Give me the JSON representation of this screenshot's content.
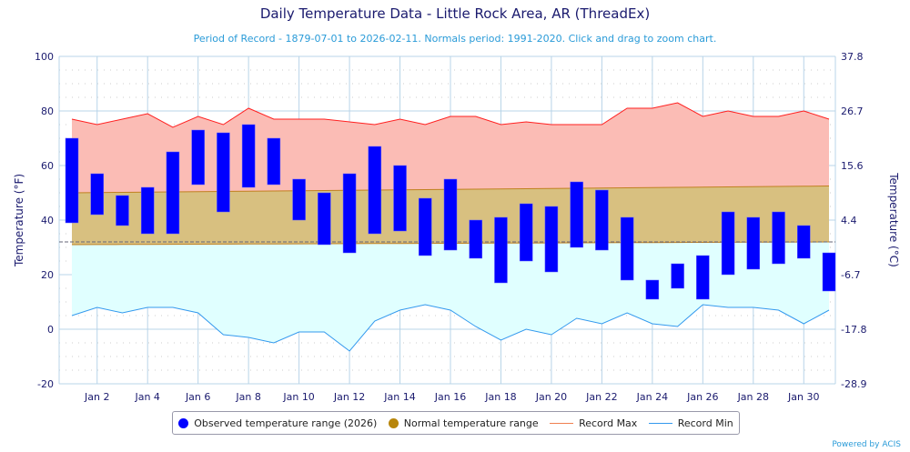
{
  "chart_data": {
    "type": "bar",
    "title": "Daily Temperature Data - Little Rock Area, AR (ThreadEx)",
    "subtitle": "Period of Record - 1879-07-01 to 2026-02-11. Normals period: 1991-2020. Click and drag to zoom chart.",
    "ylabel": "Temperature (°F)",
    "ylabel_right": "Temperature (°C)",
    "ylim": [
      -20,
      100
    ],
    "yticks": [
      -20,
      0,
      20,
      40,
      60,
      80,
      100
    ],
    "yticks_right": [
      "-28.9",
      "-17.8",
      "-6.7",
      "4.4",
      "15.6",
      "26.7",
      "37.8"
    ],
    "xtick_labels": [
      "Jan 2",
      "Jan 4",
      "Jan 6",
      "Jan 8",
      "Jan 10",
      "Jan 12",
      "Jan 14",
      "Jan 16",
      "Jan 18",
      "Jan 20",
      "Jan 22",
      "Jan 24",
      "Jan 26",
      "Jan 28",
      "Jan 30"
    ],
    "days": [
      1,
      2,
      3,
      4,
      5,
      6,
      7,
      8,
      9,
      10,
      11,
      12,
      13,
      14,
      15,
      16,
      17,
      18,
      19,
      20,
      21,
      22,
      23,
      24,
      25,
      26,
      27,
      28,
      29,
      30,
      31
    ],
    "series": [
      {
        "name": "Observed temperature range (2026)",
        "color": "#0000ff",
        "high": [
          70,
          57,
          49,
          52,
          65,
          73,
          72,
          75,
          70,
          55,
          50,
          57,
          67,
          60,
          48,
          55,
          40,
          41,
          46,
          45,
          54,
          51,
          41,
          18,
          24,
          27,
          43,
          41,
          43,
          38,
          28
        ],
        "low": [
          39,
          42,
          38,
          35,
          35,
          53,
          43,
          52,
          53,
          40,
          31,
          28,
          35,
          36,
          27,
          29,
          26,
          17,
          25,
          21,
          30,
          29,
          18,
          11,
          15,
          11,
          20,
          22,
          24,
          26,
          14
        ]
      },
      {
        "name": "Normal temperature range",
        "color": "#b8860b",
        "high_start": 50,
        "high_end": 52.5,
        "low_start": 31,
        "low_end": 32
      },
      {
        "name": "Record Max",
        "color": "#ff2020",
        "values": [
          77,
          75,
          77,
          79,
          74,
          78,
          75,
          81,
          77,
          77,
          77,
          76,
          75,
          77,
          75,
          78,
          78,
          75,
          76,
          75,
          75,
          75,
          81,
          81,
          83,
          78,
          80,
          78,
          78,
          80,
          77
        ]
      },
      {
        "name": "Record Min",
        "color": "#3399ee",
        "values": [
          5,
          8,
          6,
          8,
          8,
          6,
          -2,
          -3,
          -5,
          -1,
          -1,
          -8,
          3,
          7,
          9,
          7,
          1,
          -4,
          0,
          -2,
          4,
          2,
          6,
          2,
          1,
          9,
          8,
          8,
          7,
          2,
          7
        ]
      }
    ],
    "freezing_line": 32,
    "grid": true,
    "legend": "bottom"
  },
  "powered": "Powered by ACIS"
}
